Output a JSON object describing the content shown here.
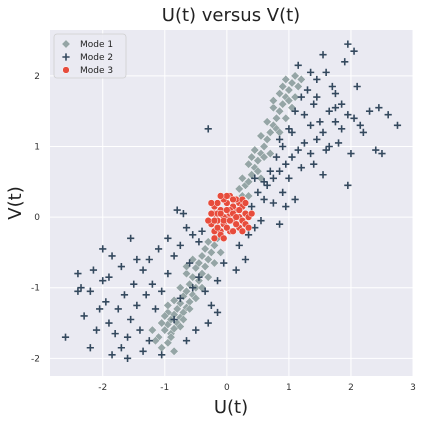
{
  "chart_data": {
    "type": "scatter",
    "title": "U(t) versus V(t)",
    "xlabel": "U(t)",
    "ylabel": "V(t)",
    "xlim": [
      -2.85,
      3.0
    ],
    "ylim": [
      -2.25,
      2.65
    ],
    "xticks": [
      -2,
      -1,
      0,
      1,
      2,
      3
    ],
    "yticks": [
      -2,
      -1,
      0,
      1,
      2
    ],
    "grid": true,
    "background": "#eaeaf2",
    "legend_position": "top-left",
    "series": [
      {
        "name": "Mode 1",
        "marker": "diamond",
        "color": "#95a5a6",
        "points": [
          [
            -1.05,
            -1.85
          ],
          [
            -0.95,
            -1.78
          ],
          [
            -1.1,
            -1.7
          ],
          [
            -0.9,
            -1.65
          ],
          [
            -1.0,
            -1.6
          ],
          [
            -0.85,
            -1.58
          ],
          [
            -0.95,
            -1.52
          ],
          [
            -0.8,
            -1.5
          ],
          [
            -1.05,
            -1.5
          ],
          [
            -0.9,
            -1.45
          ],
          [
            -0.75,
            -1.42
          ],
          [
            -0.85,
            -1.38
          ],
          [
            -0.7,
            -1.35
          ],
          [
            -0.95,
            -1.35
          ],
          [
            -0.8,
            -1.3
          ],
          [
            -0.65,
            -1.28
          ],
          [
            -0.75,
            -1.22
          ],
          [
            -0.6,
            -1.2
          ],
          [
            -0.85,
            -1.18
          ],
          [
            -0.7,
            -1.12
          ],
          [
            -0.55,
            -1.1
          ],
          [
            -0.65,
            -1.05
          ],
          [
            -0.5,
            -1.0
          ],
          [
            -0.75,
            -1.0
          ],
          [
            -0.6,
            -0.95
          ],
          [
            -0.45,
            -0.9
          ],
          [
            -0.55,
            -0.85
          ],
          [
            -0.4,
            -0.8
          ],
          [
            -0.65,
            -0.8
          ],
          [
            -0.5,
            -0.72
          ],
          [
            -0.35,
            -0.7
          ],
          [
            -0.45,
            -0.65
          ],
          [
            -0.3,
            -0.6
          ],
          [
            -0.55,
            -0.6
          ],
          [
            -0.4,
            -0.55
          ],
          [
            -0.25,
            -0.5
          ],
          [
            -0.35,
            -0.45
          ],
          [
            -0.2,
            -0.4
          ],
          [
            -0.3,
            -0.35
          ],
          [
            -0.15,
            -0.3
          ],
          [
            0.15,
            0.25
          ],
          [
            0.25,
            0.3
          ],
          [
            0.2,
            0.4
          ],
          [
            0.3,
            0.45
          ],
          [
            0.35,
            0.5
          ],
          [
            0.25,
            0.55
          ],
          [
            0.4,
            0.6
          ],
          [
            0.45,
            0.7
          ],
          [
            0.35,
            0.75
          ],
          [
            0.5,
            0.8
          ],
          [
            0.55,
            0.9
          ],
          [
            0.45,
            0.95
          ],
          [
            0.6,
            1.0
          ],
          [
            0.65,
            1.1
          ],
          [
            0.55,
            1.15
          ],
          [
            0.7,
            1.2
          ],
          [
            0.75,
            1.3
          ],
          [
            0.65,
            1.35
          ],
          [
            0.8,
            1.4
          ],
          [
            0.85,
            1.5
          ],
          [
            0.75,
            1.55
          ],
          [
            0.9,
            1.6
          ],
          [
            0.95,
            1.7
          ],
          [
            0.85,
            1.75
          ],
          [
            1.0,
            1.8
          ],
          [
            1.05,
            1.9
          ],
          [
            0.95,
            1.95
          ],
          [
            1.1,
            2.0
          ],
          [
            0.9,
            1.85
          ],
          [
            1.0,
            1.65
          ],
          [
            0.8,
            1.25
          ],
          [
            0.6,
            0.85
          ],
          [
            0.5,
            0.65
          ],
          [
            -0.9,
            -1.7
          ],
          [
            -1.15,
            -1.75
          ],
          [
            -1.0,
            -1.4
          ],
          [
            -0.7,
            -1.45
          ],
          [
            -0.6,
            -1.3
          ],
          [
            -0.5,
            -1.15
          ],
          [
            -0.4,
            -1.0
          ],
          [
            -0.3,
            -0.85
          ],
          [
            -0.2,
            -0.65
          ],
          [
            -0.1,
            -0.5
          ],
          [
            0.1,
            0.1
          ],
          [
            0.35,
            0.3
          ],
          [
            0.55,
            0.55
          ],
          [
            0.7,
            0.9
          ],
          [
            0.85,
            1.2
          ],
          [
            1.1,
            1.7
          ],
          [
            1.15,
            1.85
          ],
          [
            -1.2,
            -1.6
          ],
          [
            -0.95,
            -1.25
          ],
          [
            -0.65,
            -0.7
          ],
          [
            0.4,
            0.85
          ],
          [
            0.75,
            1.65
          ],
          [
            1.2,
            1.95
          ],
          [
            1.05,
            1.55
          ],
          [
            0.95,
            1.4
          ],
          [
            -0.85,
            -1.9
          ],
          [
            -0.75,
            -1.55
          ]
        ]
      },
      {
        "name": "Mode 2",
        "marker": "plus",
        "color": "#34495e",
        "points": [
          [
            -2.6,
            -1.7
          ],
          [
            -2.4,
            -1.05
          ],
          [
            -2.35,
            -1.0
          ],
          [
            -2.2,
            -1.05
          ],
          [
            -2.4,
            -0.8
          ],
          [
            -2.15,
            -0.75
          ],
          [
            -2.0,
            -0.9
          ],
          [
            -2.05,
            -1.3
          ],
          [
            -1.9,
            -1.5
          ],
          [
            -1.8,
            -1.65
          ],
          [
            -1.85,
            -1.95
          ],
          [
            -1.7,
            -1.85
          ],
          [
            -1.6,
            -1.7
          ],
          [
            -1.55,
            -1.45
          ],
          [
            -1.4,
            -1.6
          ],
          [
            -1.45,
            -1.25
          ],
          [
            -1.3,
            -1.1
          ],
          [
            -1.2,
            -0.95
          ],
          [
            -1.15,
            -1.3
          ],
          [
            -1.05,
            -1.05
          ],
          [
            -2.1,
            -1.6
          ],
          [
            -2.2,
            -1.85
          ],
          [
            -1.95,
            -1.2
          ],
          [
            -1.75,
            -1.3
          ],
          [
            -1.65,
            -1.1
          ],
          [
            -1.5,
            -0.95
          ],
          [
            -1.35,
            -0.75
          ],
          [
            -1.25,
            -0.6
          ],
          [
            -1.1,
            -0.45
          ],
          [
            -0.95,
            -0.3
          ],
          [
            -0.85,
            -0.55
          ],
          [
            -0.75,
            -0.4
          ],
          [
            -0.65,
            -0.15
          ],
          [
            -0.55,
            -0.25
          ],
          [
            -0.7,
            0.05
          ],
          [
            -0.8,
            0.1
          ],
          [
            -0.95,
            -0.8
          ],
          [
            -0.6,
            -0.65
          ],
          [
            -0.45,
            -0.35
          ],
          [
            -1.55,
            -0.3
          ],
          [
            -2.0,
            -0.45
          ],
          [
            -1.85,
            -0.55
          ],
          [
            -1.25,
            -1.75
          ],
          [
            -1.05,
            -1.95
          ],
          [
            -0.85,
            -1.45
          ],
          [
            -0.75,
            -1.15
          ],
          [
            -0.55,
            -1.0
          ],
          [
            -0.45,
            -0.85
          ],
          [
            -0.35,
            -1.05
          ],
          [
            -0.25,
            -1.25
          ],
          [
            -0.15,
            -1.35
          ],
          [
            -0.3,
            -1.5
          ],
          [
            -0.5,
            -1.6
          ],
          [
            -0.65,
            -1.75
          ],
          [
            -1.35,
            -1.9
          ],
          [
            -1.6,
            -2.0
          ],
          [
            -2.3,
            -1.4
          ],
          [
            -1.9,
            -0.85
          ],
          [
            -1.7,
            -0.7
          ],
          [
            -1.45,
            -0.6
          ],
          [
            0.15,
            -0.75
          ],
          [
            0.2,
            -0.4
          ],
          [
            0.35,
            -0.25
          ],
          [
            0.45,
            -0.15
          ],
          [
            0.55,
            -0.05
          ],
          [
            0.4,
            0.15
          ],
          [
            0.5,
            0.35
          ],
          [
            0.6,
            0.25
          ],
          [
            0.65,
            0.45
          ],
          [
            0.75,
            0.55
          ],
          [
            0.85,
            0.65
          ],
          [
            0.95,
            0.75
          ],
          [
            1.05,
            0.85
          ],
          [
            1.15,
            0.95
          ],
          [
            1.25,
            1.05
          ],
          [
            1.35,
            0.9
          ],
          [
            1.45,
            1.1
          ],
          [
            1.55,
            1.2
          ],
          [
            1.65,
            1.0
          ],
          [
            1.75,
            1.35
          ],
          [
            1.85,
            1.25
          ],
          [
            1.95,
            1.45
          ],
          [
            2.05,
            1.4
          ],
          [
            2.15,
            1.3
          ],
          [
            2.3,
            1.5
          ],
          [
            2.45,
            1.55
          ],
          [
            2.6,
            1.45
          ],
          [
            2.75,
            1.3
          ],
          [
            2.4,
            0.95
          ],
          [
            2.0,
            0.9
          ],
          [
            1.6,
            0.95
          ],
          [
            1.5,
            1.35
          ],
          [
            1.4,
            1.6
          ],
          [
            1.3,
            1.8
          ],
          [
            1.45,
            1.95
          ],
          [
            1.6,
            2.05
          ],
          [
            1.75,
            1.75
          ],
          [
            1.85,
            1.6
          ],
          [
            1.9,
            2.2
          ],
          [
            1.55,
            2.3
          ],
          [
            1.95,
            2.45
          ],
          [
            2.05,
            2.35
          ],
          [
            2.1,
            1.85
          ],
          [
            1.2,
            1.7
          ],
          [
            1.1,
            1.5
          ],
          [
            1.0,
            1.25
          ],
          [
            0.9,
            1.0
          ],
          [
            0.8,
            0.85
          ],
          [
            0.7,
            0.65
          ],
          [
            0.6,
            0.5
          ],
          [
            1.2,
            0.7
          ],
          [
            1.0,
            0.55
          ],
          [
            0.9,
            0.35
          ],
          [
            0.75,
            0.2
          ],
          [
            0.95,
            0.15
          ],
          [
            1.1,
            0.25
          ],
          [
            0.85,
            -0.1
          ],
          [
            0.3,
            -0.6
          ],
          [
            -0.15,
            -0.9
          ],
          [
            -0.05,
            -0.65
          ],
          [
            -0.4,
            -0.2
          ],
          [
            -0.2,
            -0.05
          ],
          [
            1.95,
            0.45
          ],
          [
            2.5,
            0.9
          ],
          [
            1.25,
            1.45
          ],
          [
            1.55,
            0.6
          ],
          [
            -0.3,
            1.25
          ],
          [
            1.65,
            1.5
          ],
          [
            1.35,
            1.3
          ],
          [
            0.45,
            0.55
          ],
          [
            1.05,
            1.2
          ],
          [
            0.85,
            1.1
          ],
          [
            1.4,
            0.75
          ],
          [
            1.8,
            1.05
          ],
          [
            2.2,
            1.2
          ],
          [
            1.7,
            1.85
          ],
          [
            1.35,
            2.05
          ],
          [
            1.15,
            2.15
          ],
          [
            1.45,
            1.7
          ],
          [
            1.75,
            1.55
          ]
        ]
      },
      {
        "name": "Mode 3",
        "marker": "circle",
        "color": "#e74c3c",
        "points": [
          [
            -0.2,
            0.05
          ],
          [
            -0.15,
            -0.05
          ],
          [
            -0.1,
            0.1
          ],
          [
            -0.05,
            -0.1
          ],
          [
            0.0,
            0.0
          ],
          [
            0.05,
            0.05
          ],
          [
            0.1,
            -0.05
          ],
          [
            0.15,
            0.1
          ],
          [
            0.2,
            0.0
          ],
          [
            0.25,
            -0.05
          ],
          [
            -0.25,
            -0.1
          ],
          [
            -0.2,
            0.15
          ],
          [
            -0.1,
            -0.2
          ],
          [
            0.0,
            0.2
          ],
          [
            0.1,
            0.15
          ],
          [
            0.2,
            0.2
          ],
          [
            0.3,
            0.05
          ],
          [
            0.3,
            -0.1
          ],
          [
            0.2,
            -0.15
          ],
          [
            0.05,
            -0.2
          ],
          [
            -0.05,
            0.25
          ],
          [
            0.05,
            0.3
          ],
          [
            0.15,
            0.25
          ],
          [
            -0.15,
            0.2
          ],
          [
            -0.25,
            0.05
          ],
          [
            -0.3,
            -0.05
          ],
          [
            -0.2,
            -0.2
          ],
          [
            -0.1,
            -0.25
          ],
          [
            0.0,
            -0.15
          ],
          [
            0.1,
            -0.2
          ],
          [
            0.25,
            0.15
          ],
          [
            0.35,
            0.0
          ],
          [
            -0.05,
            0.0
          ],
          [
            0.05,
            0.1
          ],
          [
            0.15,
            -0.1
          ],
          [
            -0.15,
            0.05
          ],
          [
            0.1,
            0.05
          ],
          [
            -0.1,
            0.05
          ],
          [
            0.0,
            0.1
          ],
          [
            0.2,
            0.1
          ],
          [
            -0.05,
            -0.05
          ],
          [
            0.15,
            0.0
          ],
          [
            -0.2,
            -0.05
          ],
          [
            0.05,
            -0.05
          ],
          [
            0.25,
            0.25
          ],
          [
            -0.15,
            -0.15
          ],
          [
            0.3,
            0.2
          ],
          [
            -0.25,
            0.2
          ],
          [
            0.4,
            0.05
          ],
          [
            -0.05,
            -0.3
          ],
          [
            0.35,
            -0.15
          ],
          [
            -0.2,
            -0.3
          ],
          [
            0.1,
            0.25
          ],
          [
            0.0,
            0.3
          ],
          [
            -0.1,
            0.3
          ],
          [
            0.25,
            -0.2
          ]
        ]
      }
    ]
  }
}
